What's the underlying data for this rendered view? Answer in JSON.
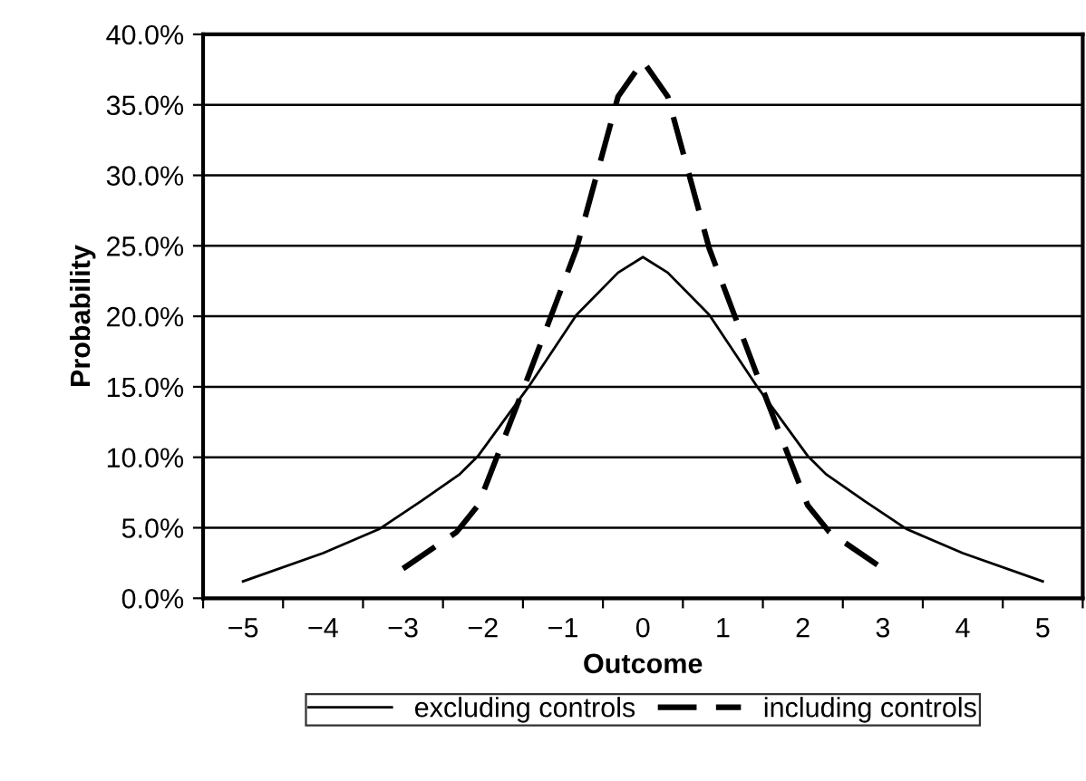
{
  "chart_data": {
    "type": "line",
    "xlabel": "Outcome",
    "ylabel": "Probability",
    "xlim": [
      -5.5,
      5.5
    ],
    "xticks": [
      {
        "value": -5.5,
        "label": null
      },
      {
        "value": -5,
        "label": "−5"
      },
      {
        "value": -4.5,
        "label": null
      },
      {
        "value": -4,
        "label": "−4"
      },
      {
        "value": -3.5,
        "label": null
      },
      {
        "value": -3,
        "label": "−3"
      },
      {
        "value": -2.5,
        "label": null
      },
      {
        "value": -2,
        "label": "−2"
      },
      {
        "value": -1.5,
        "label": null
      },
      {
        "value": -1,
        "label": "−1"
      },
      {
        "value": -0.5,
        "label": null
      },
      {
        "value": 0,
        "label": "0"
      },
      {
        "value": 0.5,
        "label": null
      },
      {
        "value": 1,
        "label": "1"
      },
      {
        "value": 1.5,
        "label": null
      },
      {
        "value": 2,
        "label": "2"
      },
      {
        "value": 2.5,
        "label": null
      },
      {
        "value": 3,
        "label": "3"
      },
      {
        "value": 3.5,
        "label": null
      },
      {
        "value": 4,
        "label": "4"
      },
      {
        "value": 4.5,
        "label": null
      },
      {
        "value": 5,
        "label": "5"
      },
      {
        "value": 5.5,
        "label": null
      }
    ],
    "ylim": [
      0,
      40
    ],
    "yticks": [
      {
        "value": 0,
        "label": "0.0%"
      },
      {
        "value": 5,
        "label": "5.0%"
      },
      {
        "value": 10,
        "label": "10.0%"
      },
      {
        "value": 15,
        "label": "15.0%"
      },
      {
        "value": 20,
        "label": "20.0%"
      },
      {
        "value": 25,
        "label": "25.0%"
      },
      {
        "value": 30,
        "label": "30.0%"
      },
      {
        "value": 35,
        "label": "35.0%"
      },
      {
        "value": 40,
        "label": "40.0%"
      }
    ],
    "grid": "y",
    "legend": "bottom",
    "series": [
      {
        "name": "excluding controls",
        "color": "#000000",
        "line_style": "solid",
        "x": [
          -5,
          -4,
          -3.3,
          -2.77,
          -2.29,
          -2.06,
          -1.43,
          -0.83,
          -0.31,
          0,
          0.31,
          0.83,
          1.43,
          2.06,
          2.29,
          2.77,
          3.3,
          4,
          5
        ],
        "values": [
          1.2,
          3.2,
          4.9,
          6.9,
          8.8,
          10.1,
          15.0,
          20.1,
          23.1,
          24.2,
          23.1,
          20.1,
          15.0,
          10.1,
          8.8,
          6.9,
          4.9,
          3.2,
          1.2
        ]
      },
      {
        "name": "including controls",
        "color": "#000000",
        "line_style": "dashed",
        "x": [
          -3,
          -2.33,
          -2.06,
          -1.43,
          -0.83,
          -0.31,
          0,
          0.31,
          0.83,
          1.43,
          2.06,
          2.33,
          3
        ],
        "values": [
          2.1,
          4.7,
          6.6,
          15.8,
          24.8,
          35.6,
          38.1,
          35.6,
          24.8,
          15.8,
          6.6,
          4.7,
          2.1
        ]
      }
    ]
  }
}
